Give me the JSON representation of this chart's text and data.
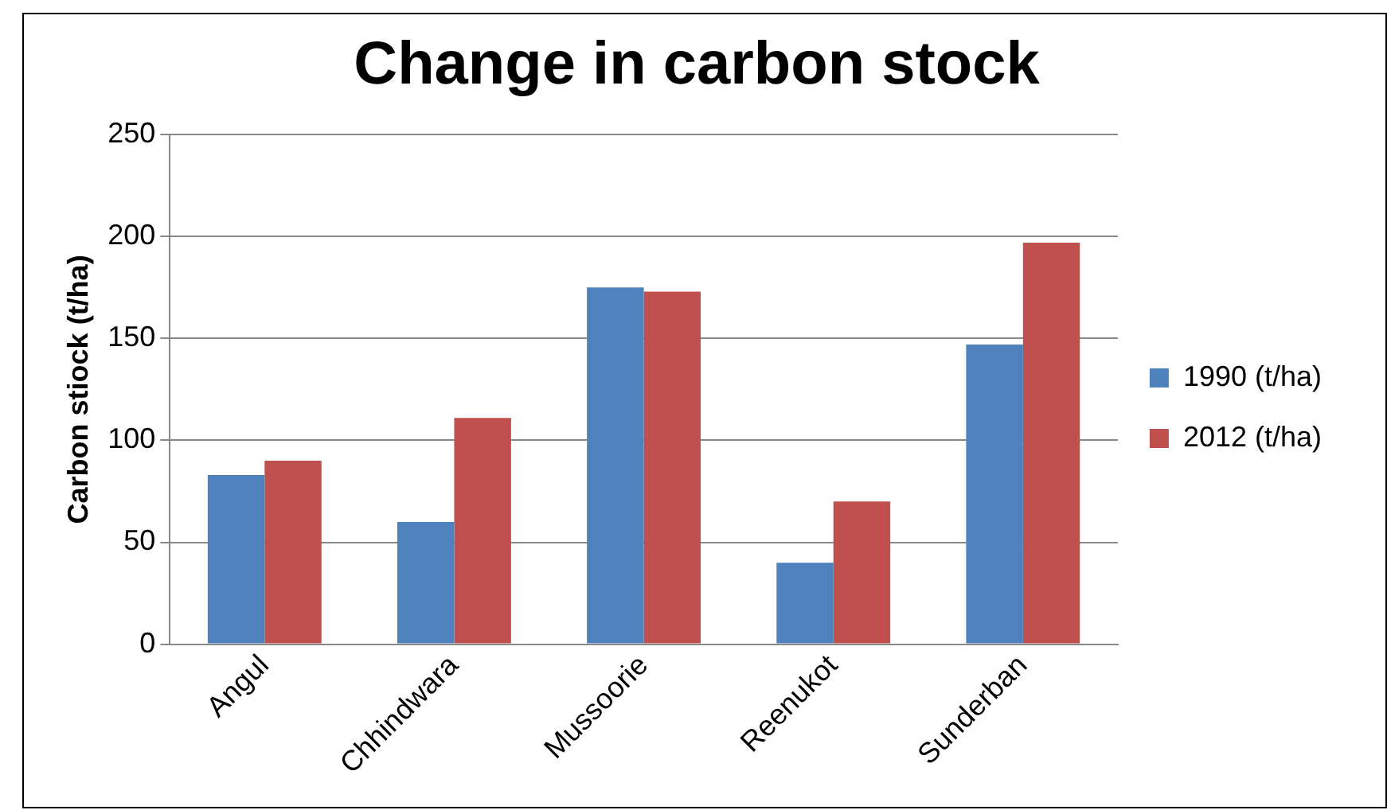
{
  "chart_data": {
    "type": "bar",
    "title": "Change in carbon stock",
    "ylabel": "Carbon stiock (t/ha)",
    "categories": [
      "Angul",
      "Chhindwara",
      "Mussoorie",
      "Reenukot",
      "Sunderban"
    ],
    "series": [
      {
        "name": "1990 (t/ha)",
        "color": "#4f81bd",
        "values": [
          83,
          60,
          175,
          40,
          147
        ]
      },
      {
        "name": "2012 (t/ha)",
        "color": "#c0504d",
        "values": [
          90,
          111,
          173,
          70,
          197
        ]
      }
    ],
    "ylim": [
      0,
      250
    ],
    "yticks": [
      0,
      50,
      100,
      150,
      200,
      250
    ],
    "grid": "y",
    "legend": "right"
  }
}
